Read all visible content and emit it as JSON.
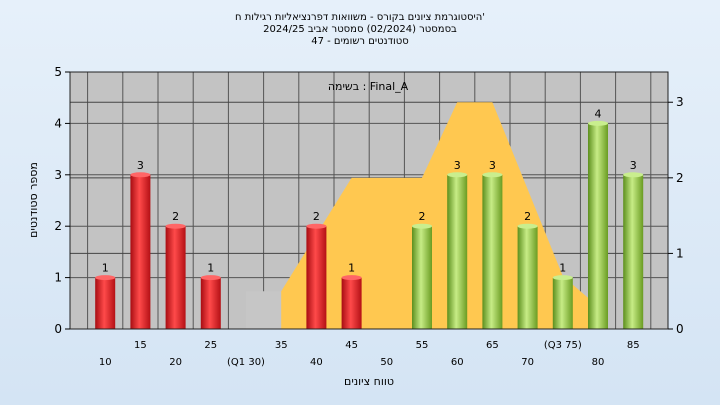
{
  "chart_data": {
    "type": "bar",
    "title": "היסטוגרמת ציונים בקורס - משוואות דפרנציאליות רגילות ח'",
    "subtitle_1": "בסמסטר  (02/2024)  סמסטר אביב 2024/25",
    "subtitle_2": "סטודנטים רשומים - 47",
    "annotation": "בשימה : Final_A",
    "xlabel": "טווח ציונים",
    "ylabel": "מספר סטודנטים",
    "ylim": [
      0,
      5
    ],
    "yticks": [
      "0",
      "1",
      "2",
      "3",
      "4",
      "5"
    ],
    "y2lim": [
      0,
      3.4
    ],
    "y2ticks": [
      "0",
      "1",
      "2",
      "3"
    ],
    "categories": [
      "10",
      "15",
      "20",
      "25",
      "30",
      "35",
      "40",
      "45",
      "50",
      "55",
      "60",
      "65",
      "70",
      "75",
      "80",
      "85"
    ],
    "category_labels": [
      "10",
      "15",
      "20",
      "25",
      "(Q1 30)",
      "35",
      "40",
      "45",
      "50",
      "55",
      "60",
      "65",
      "70",
      "(Q3 75)",
      "80",
      "85"
    ],
    "values": [
      1,
      3,
      2,
      1,
      0,
      0,
      2,
      1,
      0,
      2,
      3,
      3,
      2,
      1,
      4,
      3
    ],
    "bar_colors": [
      "red",
      "red",
      "red",
      "red",
      "none",
      "none",
      "red",
      "red",
      "none",
      "green",
      "green",
      "green",
      "green",
      "green",
      "green",
      "green"
    ],
    "distribution_area": [
      {
        "x": "30",
        "y2": 0.5
      },
      {
        "x": "35",
        "y2": 0.5
      },
      {
        "x": "45",
        "y2": 2.0
      },
      {
        "x": "55",
        "y2": 2.0
      },
      {
        "x": "60",
        "y2": 3.0
      },
      {
        "x": "65",
        "y2": 3.0
      },
      {
        "x": "75",
        "y2": 0.7
      },
      {
        "x": "80",
        "y2": 0.3
      }
    ],
    "colors": {
      "red": "#e8202a",
      "green": "#8fc040",
      "area_gray": "#c6c6c6",
      "area_gold": "#ffc850",
      "plot_bg": "#c3c3c3"
    }
  }
}
